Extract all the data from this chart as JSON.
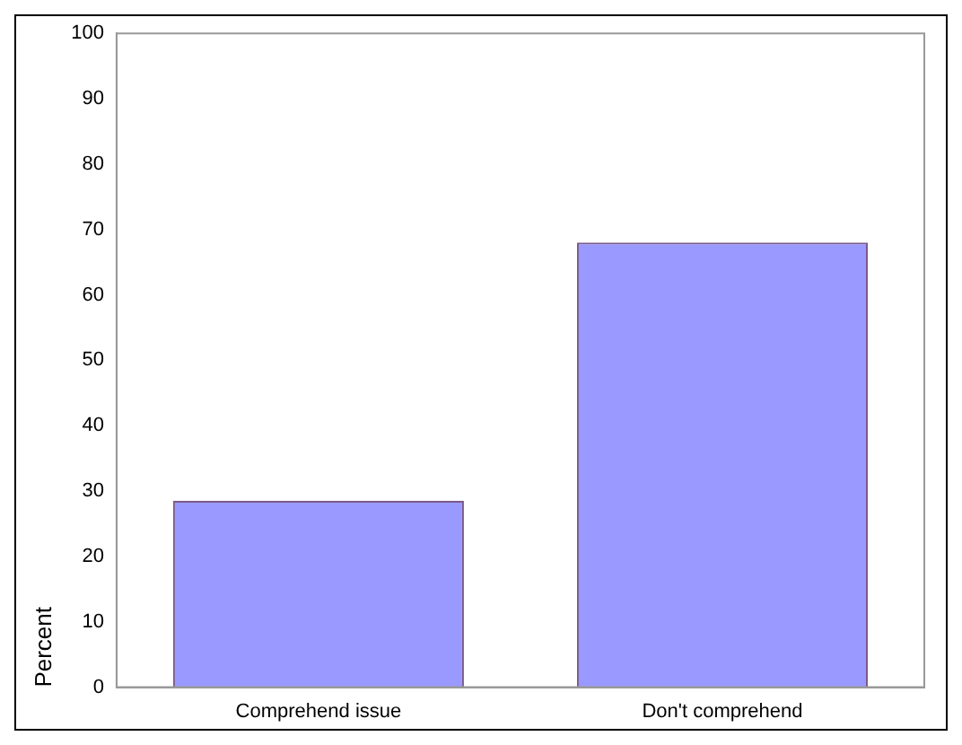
{
  "chart_data": {
    "type": "bar",
    "ylabel": "Percent",
    "categories": [
      "Comprehend issue",
      "Don't comprehend"
    ],
    "values": [
      28.5,
      68
    ],
    "color": "#9999ff",
    "ylim": [
      0,
      100
    ],
    "yticks": [
      0,
      10,
      20,
      30,
      40,
      50,
      60,
      70,
      80,
      90,
      100
    ],
    "grid": false,
    "legend": false
  }
}
